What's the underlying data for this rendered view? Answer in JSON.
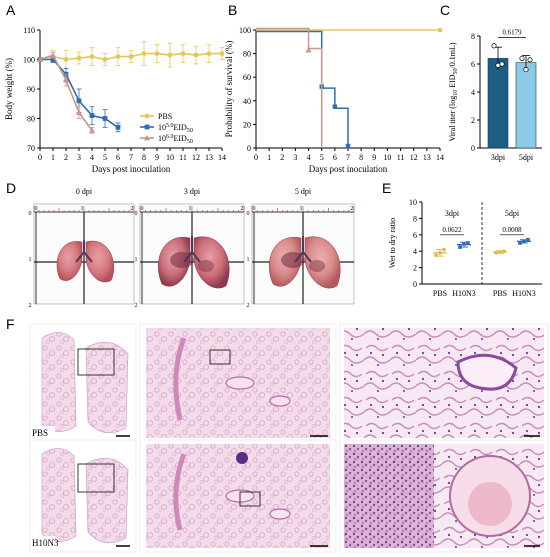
{
  "panel_labels": {
    "a": "A",
    "b": "B",
    "c": "C",
    "d": "D",
    "e": "E",
    "f": "F"
  },
  "colors": {
    "pbs": "#e6c65a",
    "h10n3_high": "#2f6db5",
    "h10n3_low": "#c9968a",
    "bar_dark": "#1c5e82",
    "bar_light": "#8cc9e6",
    "e_pbs": "#e0b84a",
    "e_h10n3": "#2f6db5"
  },
  "chart_data": [
    {
      "type": "line",
      "ylabel": "Body weight (%)",
      "xlabel": "Days post inoculation",
      "xlim": [
        0,
        14
      ],
      "ylim": [
        70,
        110
      ],
      "xticks": [
        "0",
        "1",
        "2",
        "3",
        "4",
        "5",
        "6",
        "7",
        "8",
        "9",
        "10",
        "11",
        "12",
        "13",
        "14"
      ],
      "yticks": [
        "70",
        "80",
        "90",
        "100",
        "110"
      ],
      "legend_position": "bottom-right",
      "series": [
        {
          "name": "PBS",
          "x": [
            0,
            1,
            2,
            3,
            4,
            5,
            6,
            7,
            8,
            9,
            10,
            11,
            12,
            13,
            14
          ],
          "y": [
            100,
            101,
            100,
            100.5,
            101,
            100,
            101,
            101,
            102,
            102,
            101.5,
            102,
            101.5,
            102,
            102
          ],
          "err": [
            0.5,
            2,
            3,
            2,
            3,
            2,
            3,
            2,
            4,
            3,
            4,
            3,
            3,
            3,
            2
          ]
        },
        {
          "name": "10^{5.0}EID_{50}",
          "legend_sup": "5.0",
          "legend_sub": "50",
          "x": [
            0,
            1,
            2,
            3,
            4,
            5,
            6
          ],
          "y": [
            100,
            100,
            95,
            86,
            81,
            80,
            77
          ],
          "err": [
            0.5,
            1,
            2,
            4,
            3,
            3,
            1.5
          ]
        },
        {
          "name": "10^{6.0}EID_{50}",
          "legend_sup": "6.0",
          "legend_sub": "50",
          "x": [
            0,
            1,
            2,
            3,
            4
          ],
          "y": [
            100,
            101.5,
            93,
            82,
            76
          ],
          "err": [
            0.5,
            1,
            2,
            2,
            1
          ]
        }
      ],
      "legend_prefix": "10",
      "legend_eid": "EID"
    },
    {
      "type": "line",
      "ylabel": "Probability of survival (%)",
      "xlabel": "Days post inoculation",
      "xlim": [
        0,
        14
      ],
      "ylim": [
        0,
        100
      ],
      "xticks": [
        "0",
        "1",
        "2",
        "3",
        "4",
        "5",
        "6",
        "7",
        "8",
        "9",
        "10",
        "11",
        "12",
        "13",
        "14"
      ],
      "yticks": [
        "0",
        "20",
        "40",
        "60",
        "80",
        "100"
      ],
      "series": [
        {
          "name": "PBS",
          "x": [
            0,
            14
          ],
          "y": [
            100,
            100
          ]
        },
        {
          "name": "10^{5.0}EID_{50}",
          "x": [
            0,
            5,
            5,
            6,
            6,
            7,
            7
          ],
          "y": [
            100,
            100,
            52,
            52,
            35,
            35,
            0
          ]
        },
        {
          "name": "10^{6.0}EID_{50}",
          "x": [
            0,
            4,
            4,
            5,
            5
          ],
          "y": [
            100,
            100,
            83,
            83,
            0
          ]
        }
      ]
    },
    {
      "type": "bar",
      "categories": [
        "3dpi",
        "5dpi"
      ],
      "values": [
        6.4,
        6.1
      ],
      "err": [
        0.8,
        0.5
      ],
      "points": [
        [
          7.3,
          5.9,
          6.0
        ],
        [
          6.4,
          5.6,
          6.3
        ]
      ],
      "ylabel_main": "Viral titer (log",
      "ylabel_sub1": "10",
      "ylabel_mid": " EID",
      "ylabel_sub2": "50",
      "ylabel_end": "/0.1mL)",
      "ylim": [
        0,
        8
      ],
      "yticks": [
        "0",
        "2",
        "4",
        "6",
        "8"
      ],
      "annotation": "0.6179"
    },
    {
      "type": "scatter",
      "ylabel": "Wet to dry ratio",
      "ylim": [
        0,
        10
      ],
      "yticks": [
        "0",
        "2",
        "4",
        "6",
        "8",
        "10"
      ],
      "groups": [
        "3dpi",
        "5dpi"
      ],
      "categories": [
        "PBS",
        "H10N3",
        "PBS",
        "H10N3"
      ],
      "means": [
        3.8,
        4.8,
        3.9,
        5.2
      ],
      "err": [
        0.4,
        0.3,
        0.15,
        0.2
      ],
      "points": [
        [
          3.5,
          3.8,
          4.2
        ],
        [
          4.5,
          4.9,
          5.0
        ],
        [
          3.8,
          3.9,
          4.0
        ],
        [
          5.0,
          5.2,
          5.4
        ]
      ],
      "annotations": [
        "0.0622",
        "0.0008"
      ]
    }
  ],
  "lungs": {
    "labels": [
      "0 dpi",
      "3 dpi",
      "5 dpi"
    ],
    "ruler_ticks": [
      "0",
      "1",
      "2"
    ]
  },
  "histology": {
    "row_labels": [
      "PBS",
      "H10N3"
    ]
  }
}
